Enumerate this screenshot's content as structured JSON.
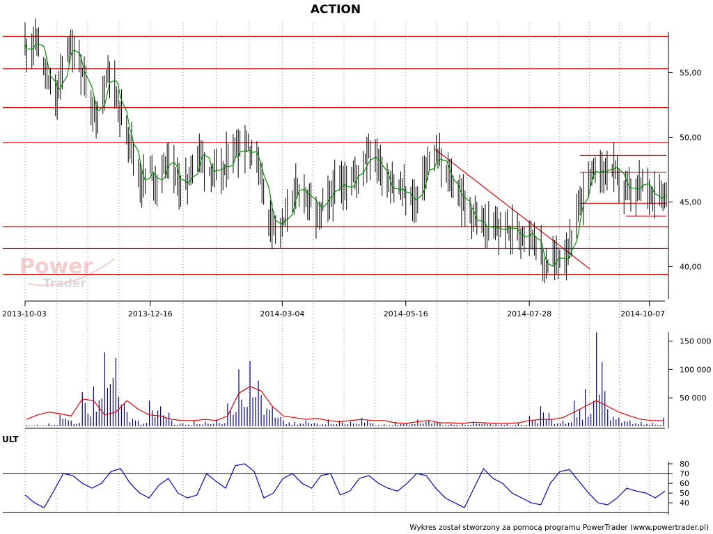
{
  "chart_data": [
    {
      "type": "candlestick",
      "title": "ACTION",
      "x_ticks": [
        "2013-10-03",
        "2013-12-16",
        "2014-03-04",
        "2014-05-16",
        "2014-07-28",
        "2014-10-07"
      ],
      "y_ticks": [
        "40,00",
        "45,00",
        "50,00",
        "55,00"
      ],
      "ylim": [
        37.5,
        59
      ],
      "support_resistance_levels": [
        57.8,
        55.3,
        52.3,
        49.6,
        43.1,
        41.4,
        39.4
      ],
      "short_levels": [
        {
          "from": "2014-08-27",
          "to": "2014-10-17",
          "value": 48.6
        },
        {
          "from": "2014-08-27",
          "to": "2014-10-17",
          "value": 47.3
        },
        {
          "from": "2014-08-27",
          "to": "2014-10-17",
          "value": 44.9
        },
        {
          "from": "2014-09-23",
          "to": "2014-10-17",
          "value": 43.9
        }
      ],
      "trendline": {
        "from": [
          "2014-06-02",
          49.1
        ],
        "to": [
          "2014-09-02",
          39.8
        ]
      },
      "moving_average_color": "#009000",
      "price_bar_color": "#000000",
      "level_color": "#e00000",
      "ohlc_points": [
        [
          "2013-10-03",
          57.0
        ],
        [
          "2013-10-10",
          57.5
        ],
        [
          "2013-10-17",
          54.0
        ],
        [
          "2013-10-22",
          53.0
        ],
        [
          "2013-10-28",
          57.2
        ],
        [
          "2013-11-04",
          56.0
        ],
        [
          "2013-11-08",
          54.0
        ],
        [
          "2013-11-14",
          51.0
        ],
        [
          "2013-11-18",
          53.5
        ],
        [
          "2013-11-22",
          55.5
        ],
        [
          "2013-11-28",
          52.0
        ],
        [
          "2013-12-04",
          50.0
        ],
        [
          "2013-12-10",
          46.5
        ],
        [
          "2013-12-16",
          47.5
        ],
        [
          "2013-12-20",
          46.5
        ],
        [
          "2013-12-27",
          48.5
        ],
        [
          "2014-01-03",
          46.0
        ],
        [
          "2014-01-08",
          47.0
        ],
        [
          "2014-01-14",
          49.0
        ],
        [
          "2014-01-20",
          47.5
        ],
        [
          "2014-01-27",
          47.0
        ],
        [
          "2014-02-03",
          49.0
        ],
        [
          "2014-02-10",
          49.5
        ],
        [
          "2014-02-17",
          48.5
        ],
        [
          "2014-02-24",
          44.0
        ],
        [
          "2014-03-04",
          43.0
        ],
        [
          "2014-03-10",
          45.5
        ],
        [
          "2014-03-17",
          46.0
        ],
        [
          "2014-03-24",
          44.0
        ],
        [
          "2014-03-28",
          44.5
        ],
        [
          "2014-04-04",
          46.0
        ],
        [
          "2014-04-11",
          46.5
        ],
        [
          "2014-04-17",
          47.0
        ],
        [
          "2014-04-24",
          49.0
        ],
        [
          "2014-04-30",
          48.0
        ],
        [
          "2014-05-06",
          46.5
        ],
        [
          "2014-05-12",
          46.0
        ],
        [
          "2014-05-16",
          45.5
        ],
        [
          "2014-05-22",
          45.0
        ],
        [
          "2014-05-28",
          47.5
        ],
        [
          "2014-06-03",
          48.5
        ],
        [
          "2014-06-10",
          47.0
        ],
        [
          "2014-06-17",
          45.5
        ],
        [
          "2014-06-24",
          44.0
        ],
        [
          "2014-07-01",
          43.0
        ],
        [
          "2014-07-07",
          42.8
        ],
        [
          "2014-07-14",
          43.0
        ],
        [
          "2014-07-21",
          42.6
        ],
        [
          "2014-07-28",
          43.0
        ],
        [
          "2014-08-01",
          42.0
        ],
        [
          "2014-08-06",
          40.0
        ],
        [
          "2014-08-12",
          40.5
        ],
        [
          "2014-08-18",
          41.0
        ],
        [
          "2014-08-22",
          41.5
        ],
        [
          "2014-08-27",
          45.0
        ],
        [
          "2014-09-02",
          47.0
        ],
        [
          "2014-09-09",
          47.5
        ],
        [
          "2014-09-16",
          47.5
        ],
        [
          "2014-09-22",
          46.0
        ],
        [
          "2014-09-29",
          45.5
        ],
        [
          "2014-10-03",
          46.5
        ],
        [
          "2014-10-07",
          46.0
        ],
        [
          "2014-10-13",
          45.5
        ],
        [
          "2014-10-17",
          46.0
        ]
      ]
    },
    {
      "type": "bar",
      "series": [
        {
          "values": [
            2,
            3,
            5,
            20,
            10,
            60,
            70,
            130,
            120,
            25,
            10,
            45,
            35,
            10,
            5,
            10,
            8,
            12,
            40,
            100,
            115,
            55,
            35,
            10,
            8,
            10,
            5,
            12,
            10,
            8,
            15,
            5,
            4,
            8,
            6,
            12,
            10,
            5,
            4,
            4,
            8,
            6,
            5,
            4,
            5,
            18,
            35,
            12,
            10,
            45,
            65,
            165,
            30,
            15,
            10,
            8,
            6,
            15
          ]
        }
      ],
      "average_line": [
        12,
        20,
        25,
        22,
        18,
        48,
        45,
        20,
        25,
        45,
        30,
        20,
        18,
        12,
        10,
        10,
        12,
        10,
        18,
        58,
        70,
        62,
        35,
        18,
        15,
        12,
        14,
        10,
        8,
        10,
        12,
        10,
        10,
        6,
        5,
        8,
        10,
        6,
        6,
        5,
        7,
        6,
        5,
        5,
        6,
        10,
        12,
        12,
        15,
        25,
        35,
        45,
        35,
        25,
        18,
        12,
        10,
        10
      ],
      "y_ticks": [
        "50 000",
        "100 000",
        "150 000"
      ],
      "ylim": [
        0,
        175000
      ],
      "bar_color": "#00008b",
      "average_color": "#e00000"
    },
    {
      "type": "line",
      "title": "ULT",
      "y_ticks": [
        "40",
        "50",
        "60",
        "70",
        "80"
      ],
      "reference_levels": [
        30,
        70
      ],
      "ylim": [
        28,
        85
      ],
      "values": [
        48,
        40,
        35,
        52,
        70,
        68,
        60,
        55,
        60,
        72,
        75,
        60,
        50,
        45,
        58,
        65,
        50,
        45,
        48,
        70,
        62,
        55,
        78,
        80,
        72,
        45,
        50,
        65,
        70,
        60,
        55,
        68,
        70,
        48,
        52,
        65,
        68,
        60,
        55,
        52,
        60,
        70,
        68,
        55,
        45,
        40,
        35,
        55,
        75,
        65,
        60,
        50,
        45,
        40,
        38,
        60,
        72,
        74,
        62,
        50,
        40,
        38,
        45,
        55,
        52,
        50,
        45,
        52
      ],
      "line_color": "#0000cc"
    }
  ],
  "footer": "Wykres został stworzony za pomocą programu PowerTrader (www.powertrader.pl)",
  "watermark": {
    "line1": "Power",
    "line2": "Trader"
  }
}
